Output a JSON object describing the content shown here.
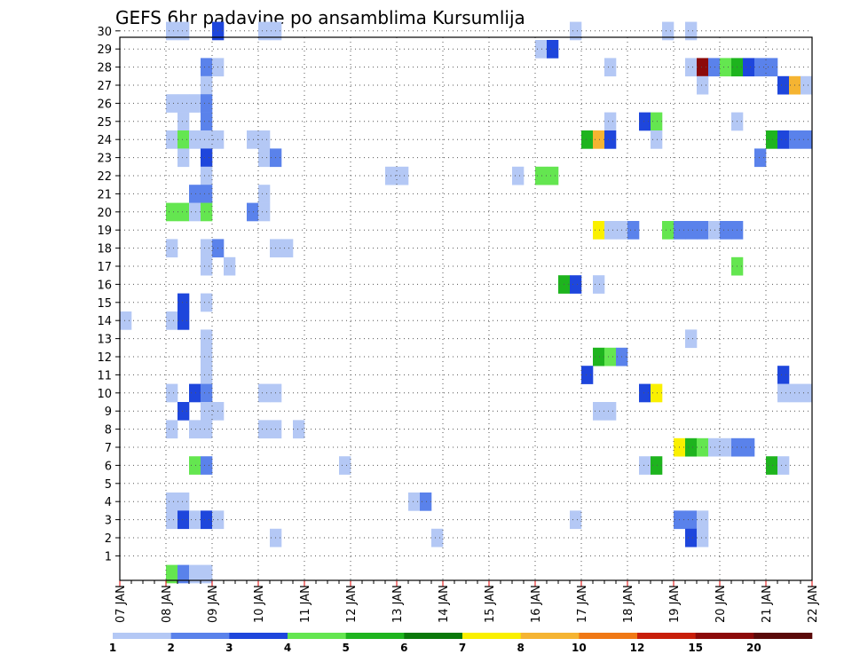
{
  "chart_data": {
    "type": "heatmap",
    "title": "GEFS 6hr padavine po ansamblima Kursumlija",
    "xlabel": "",
    "ylabel": "",
    "x_tick_labels": [
      "07 JAN",
      "08 JAN",
      "09 JAN",
      "10 JAN",
      "11 JAN",
      "12 JAN",
      "13 JAN",
      "14 JAN",
      "15 JAN",
      "16 JAN",
      "17 JAN",
      "18 JAN",
      "19 JAN",
      "20 JAN",
      "21 JAN",
      "22 JAN"
    ],
    "x_range_days": [
      0,
      15
    ],
    "time_step_hours": 6,
    "members": [
      1,
      2,
      3,
      4,
      5,
      6,
      7,
      8,
      9,
      10,
      11,
      12,
      13,
      14,
      15,
      16,
      17,
      18,
      19,
      20,
      21,
      22,
      23,
      24,
      25,
      26,
      27,
      28,
      29,
      30
    ],
    "grid": true,
    "color_scale": {
      "labels": [
        "1",
        "2",
        "3",
        "4",
        "5",
        "6",
        "7",
        "8",
        "10",
        "12",
        "15",
        "20"
      ],
      "colors": [
        "#b4c8f5",
        "#5a82eb",
        "#1e46dc",
        "#64e650",
        "#1eb41e",
        "#0a780a",
        "#faf000",
        "#f5b432",
        "#f07814",
        "#c81e0a",
        "#8c0a0a",
        "#5a0a0a"
      ],
      "legend_position": "bottom"
    },
    "cells": [
      {
        "m": 30,
        "c": [
          [
            4,
            1
          ],
          [
            5,
            1
          ],
          [
            8,
            3
          ],
          [
            12,
            1
          ],
          [
            13,
            1
          ],
          [
            39,
            1
          ],
          [
            47,
            1
          ],
          [
            49,
            1
          ]
        ]
      },
      {
        "m": 29,
        "c": [
          [
            36,
            1
          ],
          [
            37,
            3
          ]
        ]
      },
      {
        "m": 28,
        "c": [
          [
            7,
            2
          ],
          [
            8,
            1
          ],
          [
            42,
            1
          ],
          [
            49,
            1
          ],
          [
            50,
            11
          ],
          [
            51,
            2
          ],
          [
            52,
            4
          ],
          [
            53,
            5
          ],
          [
            54,
            3
          ],
          [
            55,
            2
          ],
          [
            56,
            2
          ]
        ]
      },
      {
        "m": 27,
        "c": [
          [
            7,
            1
          ],
          [
            50,
            1
          ],
          [
            57,
            3
          ],
          [
            58,
            8
          ],
          [
            59,
            1
          ]
        ]
      },
      {
        "m": 26,
        "c": [
          [
            4,
            1
          ],
          [
            5,
            1
          ],
          [
            6,
            1
          ],
          [
            7,
            2
          ]
        ]
      },
      {
        "m": 25,
        "c": [
          [
            5,
            1
          ],
          [
            7,
            2
          ],
          [
            42,
            1
          ],
          [
            45,
            3
          ],
          [
            46,
            4
          ],
          [
            53,
            1
          ]
        ]
      },
      {
        "m": 24,
        "c": [
          [
            4,
            1
          ],
          [
            5,
            4
          ],
          [
            6,
            1
          ],
          [
            7,
            1
          ],
          [
            8,
            1
          ],
          [
            11,
            1
          ],
          [
            12,
            1
          ],
          [
            40,
            5
          ],
          [
            41,
            8
          ],
          [
            42,
            3
          ],
          [
            46,
            1
          ],
          [
            56,
            5
          ],
          [
            57,
            3
          ],
          [
            58,
            2
          ],
          [
            59,
            2
          ]
        ]
      },
      {
        "m": 23,
        "c": [
          [
            5,
            1
          ],
          [
            7,
            3
          ],
          [
            12,
            1
          ],
          [
            13,
            2
          ],
          [
            55,
            2
          ]
        ]
      },
      {
        "m": 22,
        "c": [
          [
            7,
            1
          ],
          [
            23,
            1
          ],
          [
            24,
            1
          ],
          [
            34,
            1
          ],
          [
            36,
            4
          ],
          [
            37,
            4
          ]
        ]
      },
      {
        "m": 21,
        "c": [
          [
            6,
            2
          ],
          [
            7,
            2
          ],
          [
            12,
            1
          ]
        ]
      },
      {
        "m": 20,
        "c": [
          [
            4,
            4
          ],
          [
            5,
            4
          ],
          [
            6,
            1
          ],
          [
            7,
            4
          ],
          [
            11,
            2
          ],
          [
            12,
            1
          ]
        ]
      },
      {
        "m": 19,
        "c": [
          [
            41,
            7
          ],
          [
            42,
            1
          ],
          [
            43,
            1
          ],
          [
            44,
            2
          ],
          [
            47,
            4
          ],
          [
            48,
            2
          ],
          [
            49,
            2
          ],
          [
            50,
            2
          ],
          [
            51,
            1
          ],
          [
            52,
            2
          ],
          [
            53,
            2
          ]
        ]
      },
      {
        "m": 18,
        "c": [
          [
            4,
            1
          ],
          [
            7,
            1
          ],
          [
            8,
            2
          ],
          [
            13,
            1
          ],
          [
            14,
            1
          ]
        ]
      },
      {
        "m": 17,
        "c": [
          [
            7,
            1
          ],
          [
            9,
            1
          ],
          [
            53,
            4
          ]
        ]
      },
      {
        "m": 16,
        "c": [
          [
            38,
            5
          ],
          [
            39,
            3
          ],
          [
            41,
            1
          ]
        ]
      },
      {
        "m": 15,
        "c": [
          [
            5,
            3
          ],
          [
            7,
            1
          ]
        ]
      },
      {
        "m": 14,
        "c": [
          [
            0,
            1
          ],
          [
            4,
            1
          ],
          [
            5,
            3
          ]
        ]
      },
      {
        "m": 13,
        "c": [
          [
            7,
            1
          ],
          [
            49,
            1
          ]
        ]
      },
      {
        "m": 12,
        "c": [
          [
            7,
            1
          ],
          [
            41,
            5
          ],
          [
            42,
            4
          ],
          [
            43,
            2
          ]
        ]
      },
      {
        "m": 11,
        "c": [
          [
            7,
            1
          ],
          [
            40,
            3
          ],
          [
            57,
            3
          ]
        ]
      },
      {
        "m": 10,
        "c": [
          [
            4,
            1
          ],
          [
            6,
            3
          ],
          [
            7,
            2
          ],
          [
            12,
            1
          ],
          [
            13,
            1
          ],
          [
            45,
            3
          ],
          [
            46,
            7
          ],
          [
            57,
            1
          ],
          [
            58,
            1
          ],
          [
            59,
            1
          ]
        ]
      },
      {
        "m": 9,
        "c": [
          [
            5,
            3
          ],
          [
            7,
            1
          ],
          [
            8,
            1
          ],
          [
            41,
            1
          ],
          [
            42,
            1
          ]
        ]
      },
      {
        "m": 8,
        "c": [
          [
            4,
            1
          ],
          [
            6,
            1
          ],
          [
            7,
            1
          ],
          [
            12,
            1
          ],
          [
            13,
            1
          ],
          [
            15,
            1
          ]
        ]
      },
      {
        "m": 7,
        "c": [
          [
            48,
            7
          ],
          [
            49,
            5
          ],
          [
            50,
            4
          ],
          [
            51,
            1
          ],
          [
            52,
            1
          ],
          [
            53,
            2
          ],
          [
            54,
            2
          ]
        ]
      },
      {
        "m": 6,
        "c": [
          [
            6,
            4
          ],
          [
            7,
            2
          ],
          [
            19,
            1
          ],
          [
            45,
            1
          ],
          [
            46,
            5
          ],
          [
            56,
            5
          ],
          [
            57,
            1
          ]
        ]
      },
      {
        "m": 4,
        "c": [
          [
            4,
            1
          ],
          [
            5,
            1
          ],
          [
            25,
            1
          ],
          [
            26,
            2
          ]
        ]
      },
      {
        "m": 3,
        "c": [
          [
            4,
            1
          ],
          [
            5,
            3
          ],
          [
            6,
            1
          ],
          [
            7,
            3
          ],
          [
            8,
            1
          ],
          [
            39,
            1
          ],
          [
            48,
            2
          ],
          [
            49,
            2
          ],
          [
            50,
            1
          ]
        ]
      },
      {
        "m": 2,
        "c": [
          [
            13,
            1
          ],
          [
            27,
            1
          ],
          [
            49,
            3
          ],
          [
            50,
            1
          ]
        ]
      },
      {
        "m": 0,
        "c": [
          [
            4,
            4
          ],
          [
            5,
            2
          ],
          [
            6,
            1
          ],
          [
            7,
            1
          ]
        ]
      }
    ]
  }
}
